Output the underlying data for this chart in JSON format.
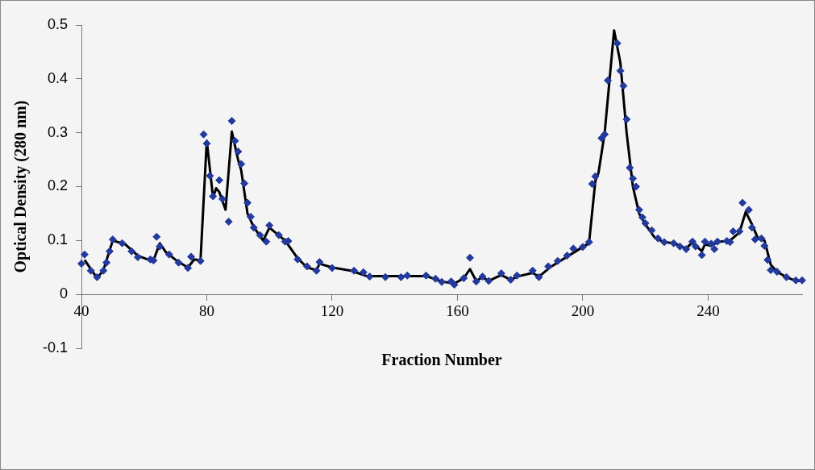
{
  "chart_data": {
    "type": "scatter",
    "xlabel": "Fraction Number",
    "ylabel": "Optical Density (280 nm)",
    "xlim": [
      40,
      270
    ],
    "ylim": [
      -0.1,
      0.5
    ],
    "xticks": [
      40,
      80,
      120,
      160,
      200,
      240
    ],
    "yticks": [
      -0.1,
      0,
      0.1,
      0.2,
      0.3,
      0.4,
      0.5
    ],
    "grid": false,
    "marker": "diamond",
    "series": [
      {
        "type": "scatter",
        "color": "#23399c",
        "x": [
          40,
          41,
          43,
          45,
          47,
          48,
          49,
          50,
          53,
          56,
          58,
          62,
          63,
          64,
          65,
          68,
          71,
          74,
          75,
          78,
          79,
          80,
          81,
          82,
          84,
          85,
          87,
          88,
          89,
          90,
          91,
          92,
          93,
          94,
          95,
          97,
          99,
          100,
          103,
          105,
          106,
          109,
          112,
          115,
          116,
          120,
          127,
          130,
          132,
          137,
          142,
          144,
          150,
          153,
          155,
          158,
          159,
          162,
          164,
          166,
          168,
          170,
          174,
          177,
          179,
          184,
          186,
          189,
          192,
          195,
          197,
          200,
          202,
          203,
          204,
          206,
          207,
          208,
          211,
          212,
          213,
          214,
          215,
          216,
          217,
          218,
          219,
          220,
          222,
          224,
          226,
          229,
          231,
          233,
          235,
          236,
          238,
          239,
          241,
          242,
          243,
          246,
          247,
          248,
          250,
          251,
          253,
          254,
          255,
          257,
          258,
          259,
          260,
          262,
          265,
          268,
          270
        ],
        "values": [
          0.057,
          0.074,
          0.044,
          0.032,
          0.044,
          0.059,
          0.08,
          0.102,
          0.095,
          0.08,
          0.069,
          0.065,
          0.063,
          0.107,
          0.089,
          0.074,
          0.059,
          0.049,
          0.07,
          0.062,
          0.297,
          0.28,
          0.22,
          0.182,
          0.212,
          0.177,
          0.135,
          0.322,
          0.285,
          0.265,
          0.242,
          0.206,
          0.17,
          0.144,
          0.124,
          0.11,
          0.098,
          0.128,
          0.11,
          0.098,
          0.099,
          0.065,
          0.052,
          0.044,
          0.06,
          0.049,
          0.044,
          0.041,
          0.033,
          0.032,
          0.032,
          0.035,
          0.035,
          0.029,
          0.023,
          0.024,
          0.018,
          0.03,
          0.068,
          0.024,
          0.033,
          0.025,
          0.039,
          0.027,
          0.035,
          0.044,
          0.032,
          0.052,
          0.062,
          0.072,
          0.085,
          0.088,
          0.097,
          0.205,
          0.219,
          0.29,
          0.297,
          0.397,
          0.466,
          0.415,
          0.387,
          0.325,
          0.235,
          0.215,
          0.2,
          0.157,
          0.143,
          0.132,
          0.119,
          0.104,
          0.097,
          0.095,
          0.089,
          0.084,
          0.098,
          0.089,
          0.073,
          0.098,
          0.094,
          0.084,
          0.098,
          0.099,
          0.097,
          0.117,
          0.117,
          0.17,
          0.157,
          0.124,
          0.102,
          0.104,
          0.09,
          0.064,
          0.045,
          0.042,
          0.032,
          0.026,
          0.026
        ]
      },
      {
        "type": "line",
        "color": "#000000",
        "marker": "none",
        "x": [
          41,
          45,
          47,
          50,
          54,
          58,
          62,
          63,
          65,
          67,
          71,
          74,
          76,
          78,
          80,
          82,
          83,
          84,
          86,
          88,
          90,
          91,
          93,
          95,
          98,
          100,
          105,
          109,
          112,
          115,
          116,
          120,
          126,
          131,
          143,
          150,
          155,
          159,
          162,
          164,
          166,
          168,
          170,
          174,
          177,
          179,
          184,
          186,
          190,
          195,
          200,
          202,
          204,
          205,
          207,
          210,
          212,
          214,
          216,
          218,
          220,
          223,
          226,
          229,
          233,
          235,
          238,
          239,
          241,
          243,
          247,
          250,
          252,
          254,
          256,
          258,
          260,
          262,
          265,
          268,
          270
        ],
        "values": [
          0.064,
          0.03,
          0.045,
          0.1,
          0.093,
          0.072,
          0.063,
          0.063,
          0.095,
          0.078,
          0.06,
          0.05,
          0.065,
          0.063,
          0.285,
          0.18,
          0.197,
          0.19,
          0.157,
          0.302,
          0.25,
          0.23,
          0.15,
          0.125,
          0.1,
          0.124,
          0.1,
          0.067,
          0.05,
          0.045,
          0.057,
          0.05,
          0.044,
          0.034,
          0.034,
          0.034,
          0.024,
          0.02,
          0.03,
          0.047,
          0.025,
          0.032,
          0.025,
          0.036,
          0.027,
          0.033,
          0.04,
          0.033,
          0.052,
          0.07,
          0.088,
          0.095,
          0.21,
          0.225,
          0.3,
          0.49,
          0.43,
          0.3,
          0.2,
          0.15,
          0.13,
          0.105,
          0.097,
          0.095,
          0.085,
          0.097,
          0.08,
          0.093,
          0.09,
          0.097,
          0.1,
          0.115,
          0.153,
          0.13,
          0.103,
          0.1,
          0.055,
          0.042,
          0.032,
          0.025,
          0.025
        ]
      }
    ]
  }
}
